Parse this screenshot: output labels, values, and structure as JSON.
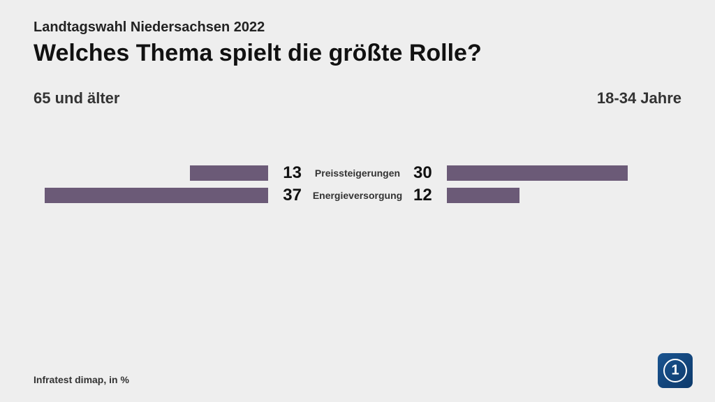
{
  "supertitle": "Landtagswahl Niedersachsen 2022",
  "title": "Welches Thema spielt die größte Rolle?",
  "left_group": "65 und älter",
  "right_group": "18-34 Jahre",
  "source": "Infratest dimap, in %",
  "chart": {
    "type": "diverging-bar",
    "bar_color": "#6b5a77",
    "background_color": "#eeeeee",
    "text_color": "#111111",
    "max_value": 37,
    "rows": [
      {
        "category": "Preissteigerungen",
        "left_value": 13,
        "right_value": 30
      },
      {
        "category": "Energieversorgung",
        "left_value": 37,
        "right_value": 12
      }
    ]
  }
}
